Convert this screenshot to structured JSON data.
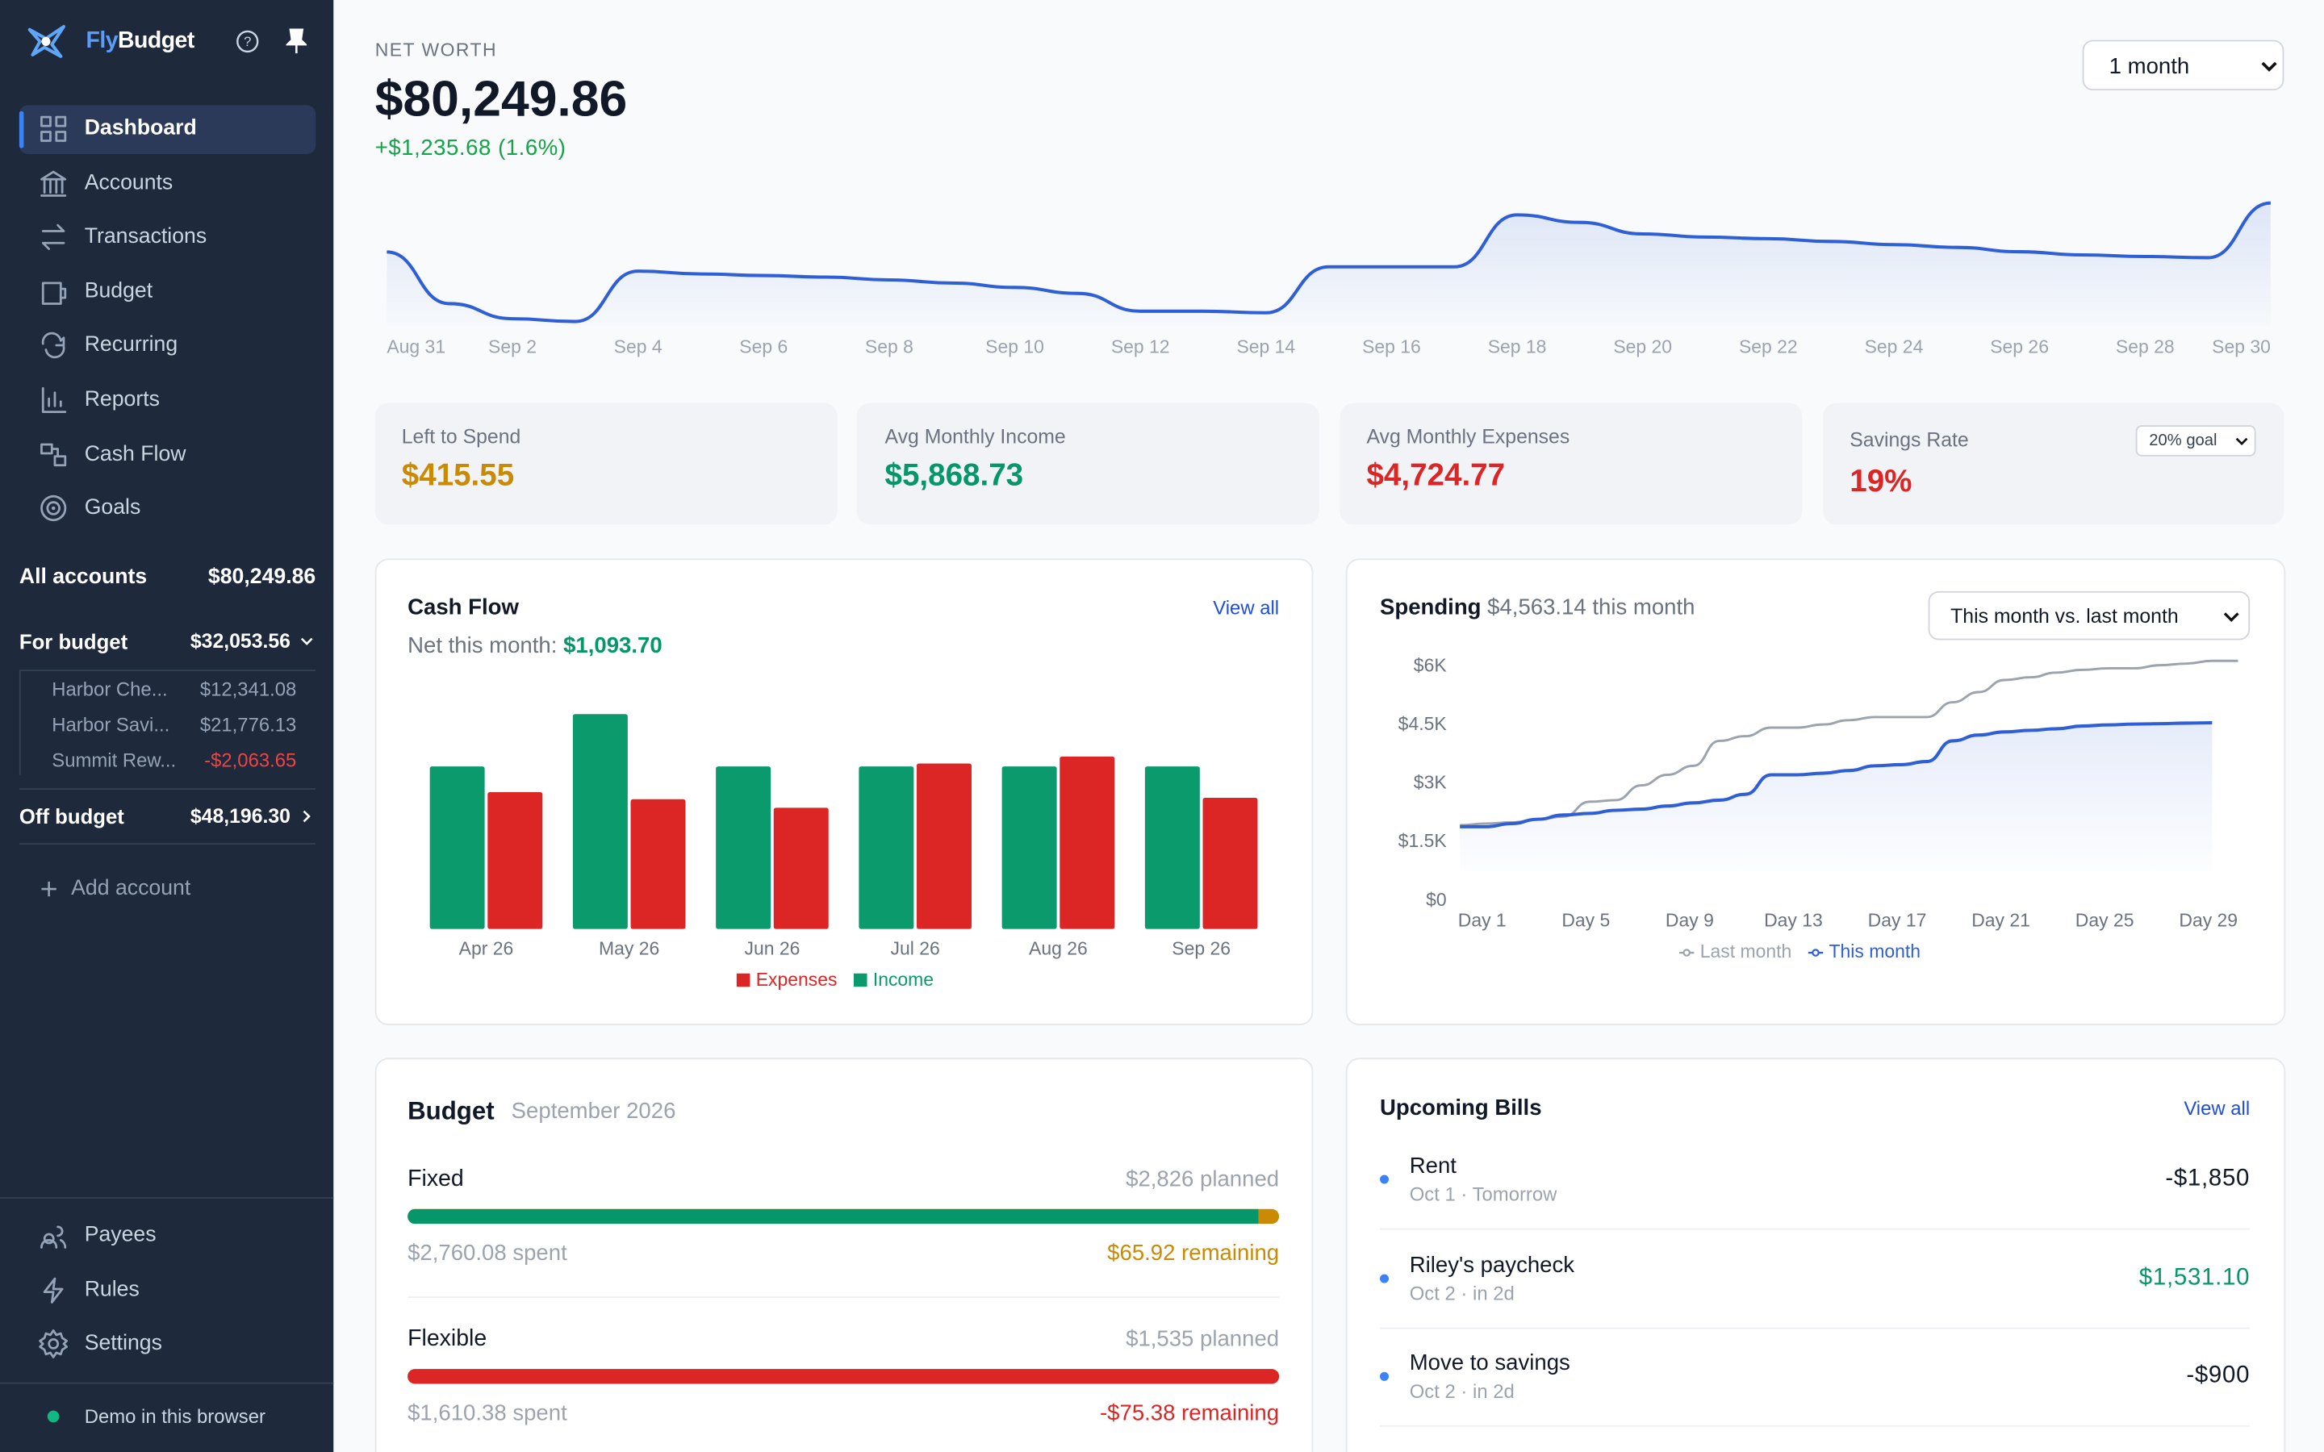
{
  "sidebar": {
    "brand": {
      "fly": "Fly",
      "budget": "Budget"
    },
    "nav": [
      "Dashboard",
      "Accounts",
      "Transactions",
      "Budget",
      "Recurring",
      "Reports",
      "Cash Flow",
      "Goals"
    ],
    "all_accounts": {
      "label": "All accounts",
      "total": "$80,249.86"
    },
    "for_budget": {
      "label": "For budget",
      "total": "$32,053.56",
      "accounts": [
        {
          "name": "Harbor Che...",
          "balance": "$12,341.08"
        },
        {
          "name": "Harbor Savi...",
          "balance": "$21,776.13"
        },
        {
          "name": "Summit Rew...",
          "balance": "-$2,063.65"
        }
      ]
    },
    "off_budget": {
      "label": "Off budget",
      "total": "$48,196.30"
    },
    "add_account": "Add account",
    "bottom_nav": [
      "Payees",
      "Rules",
      "Settings"
    ],
    "status": "Demo in this browser"
  },
  "net_worth": {
    "label": "NET WORTH",
    "value": "$80,249.86",
    "change": "+$1,235.68 (1.6%)",
    "period": "1 month",
    "chart": {
      "type": "line",
      "color": "#2f5fd6",
      "categories": [
        "Aug 31",
        null,
        "Sep 2",
        null,
        "Sep 4",
        null,
        "Sep 6",
        null,
        "Sep 8",
        null,
        "Sep 10",
        null,
        "Sep 12",
        null,
        "Sep 14",
        null,
        "Sep 16",
        null,
        "Sep 18",
        null,
        "Sep 20",
        null,
        "Sep 22",
        null,
        "Sep 24",
        null,
        "Sep 26",
        null,
        "Sep 28",
        null,
        "Sep 30"
      ],
      "values": [
        79014,
        77710,
        77330,
        77260,
        78530,
        78460,
        78420,
        78380,
        78310,
        78230,
        78120,
        77970,
        77520,
        77520,
        77480,
        78640,
        78640,
        78640,
        79950,
        79760,
        79470,
        79390,
        79350,
        79280,
        79200,
        79130,
        79020,
        78940,
        78900,
        78870,
        80249.86
      ]
    }
  },
  "stats": [
    {
      "label": "Left to Spend",
      "value": "$415.55"
    },
    {
      "label": "Avg Monthly Income",
      "value": "$5,868.73"
    },
    {
      "label": "Avg Monthly Expenses",
      "value": "$4,724.77"
    },
    {
      "label": "Savings Rate",
      "value": "19%",
      "goal": "20% goal"
    }
  ],
  "cash_flow": {
    "title": "Cash Flow",
    "link": "View all",
    "net_label": "Net this month:",
    "net_value": "$1,093.70",
    "chart": {
      "type": "bar",
      "categories": [
        "Apr 26",
        "May 26",
        "Jun 26",
        "Jul 26",
        "Aug 26",
        "Sep 26"
      ],
      "series": [
        {
          "name": "Income",
          "color": "#0a9a6c",
          "values": [
            5600,
            7400,
            5600,
            5600,
            5600,
            5600
          ]
        },
        {
          "name": "Expenses",
          "color": "#dc2626",
          "values": [
            4715,
            4470,
            4175,
            5700,
            5940,
            4520
          ]
        }
      ]
    }
  },
  "spending": {
    "title": "Spending",
    "total": "$4,563.14 this month",
    "period": "This month vs. last month",
    "chart": {
      "type": "line",
      "categories": [
        "Day 1",
        null,
        null,
        null,
        "Day 5",
        null,
        null,
        null,
        "Day 9",
        null,
        null,
        null,
        "Day 13",
        null,
        null,
        null,
        "Day 17",
        null,
        null,
        null,
        "Day 21",
        null,
        null,
        null,
        "Day 25",
        null,
        null,
        null,
        "Day 29",
        null,
        null
      ],
      "ylim": [
        0,
        6000
      ],
      "yticks": [
        {
          "value": 0,
          "label": "$0"
        },
        {
          "value": 1500,
          "label": "$1.5K"
        },
        {
          "value": 3000,
          "label": "$3K"
        },
        {
          "value": 4500,
          "label": "$4.5K"
        },
        {
          "value": 6000,
          "label": "$6K"
        }
      ],
      "series": [
        {
          "name": "Last month",
          "color": "#9ca3af",
          "values": [
            1940,
            1980,
            2010,
            2090,
            2160,
            2540,
            2580,
            2960,
            3230,
            3460,
            4100,
            4220,
            4440,
            4440,
            4520,
            4630,
            4710,
            4710,
            4710,
            5090,
            5350,
            5660,
            5730,
            5850,
            5920,
            5960,
            5960,
            6040,
            6080,
            6150,
            6150
          ]
        },
        {
          "name": "This month",
          "color": "#2f5fd6",
          "values": [
            1900,
            1900,
            1980,
            2090,
            2200,
            2240,
            2320,
            2350,
            2430,
            2510,
            2580,
            2730,
            3230,
            3230,
            3270,
            3340,
            3460,
            3490,
            3570,
            4100,
            4250,
            4330,
            4370,
            4410,
            4480,
            4510,
            4530,
            4540,
            4555,
            4563.14,
            null
          ]
        }
      ]
    }
  },
  "budget": {
    "title": "Budget",
    "period": "September 2026",
    "groups": [
      {
        "name": "Fixed",
        "planned": 2826,
        "planned_label": "$2,826 planned",
        "spent": 2760.08,
        "spent_label": "$2,760.08 spent",
        "remaining_label": "$65.92 remaining"
      },
      {
        "name": "Flexible",
        "planned": 1535,
        "planned_label": "$1,535 planned",
        "spent": 1610.38,
        "spent_label": "$1,610.38 spent",
        "remaining_label": "-$75.38 remaining"
      }
    ]
  },
  "bills": {
    "title": "Upcoming Bills",
    "link": "View all",
    "items": [
      {
        "name": "Rent",
        "when": "Oct 1 · Tomorrow",
        "amount": "-$1,850"
      },
      {
        "name": "Riley's paycheck",
        "when": "Oct 2 · in 2d",
        "amount": "$1,531.10"
      },
      {
        "name": "Move to savings",
        "when": "Oct 2 · in 2d",
        "amount": "-$900"
      }
    ]
  }
}
